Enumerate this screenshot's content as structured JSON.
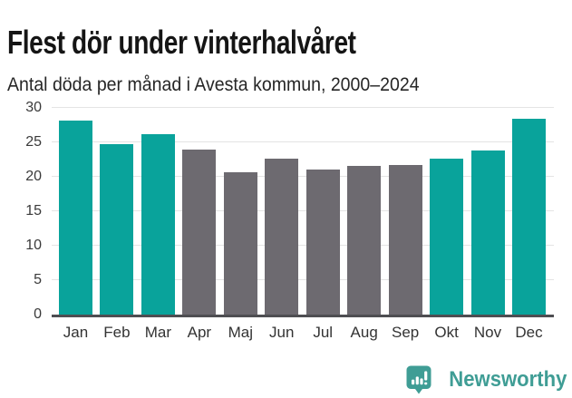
{
  "header": {
    "title": "Flest dör under vinterhalvåret",
    "subtitle": "Antal döda per månad i Avesta kommun, 2000–2024"
  },
  "chart_data": {
    "type": "bar",
    "title": "Flest dör under vinterhalvåret",
    "subtitle": "Antal döda per månad i Avesta kommun, 2000–2024",
    "categories": [
      "Jan",
      "Feb",
      "Mar",
      "Apr",
      "Maj",
      "Jun",
      "Jul",
      "Aug",
      "Sep",
      "Okt",
      "Nov",
      "Dec"
    ],
    "values": [
      28.2,
      24.7,
      26.2,
      23.9,
      20.7,
      22.6,
      21.0,
      21.6,
      21.7,
      22.7,
      23.8,
      28.4
    ],
    "highlighted": [
      true,
      true,
      true,
      false,
      false,
      false,
      false,
      false,
      false,
      true,
      true,
      true
    ],
    "highlight_color": "#09a39b",
    "base_color": "#6d6a70",
    "xlabel": "",
    "ylabel": "",
    "ylim": [
      0,
      30
    ],
    "yticks": [
      0,
      5,
      10,
      15,
      20,
      25,
      30
    ],
    "grid": true,
    "gridline_color": "#e4e4e4",
    "axis_color": "#4e4e52",
    "legend": "none"
  },
  "footer": {
    "brand": "Newsworthy",
    "brand_color": "#3f9d95",
    "logo_icon": "bar-chart-pin-badge"
  }
}
